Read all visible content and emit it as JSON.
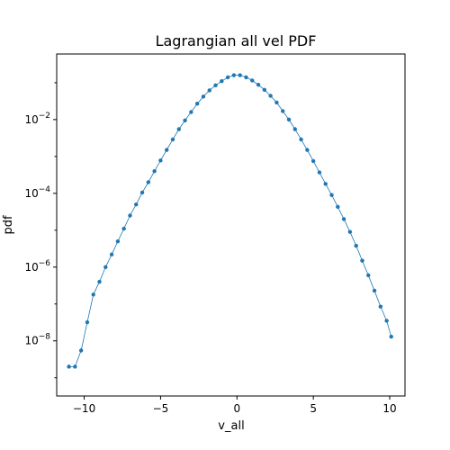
{
  "chart_data": {
    "type": "line",
    "title": "Lagrangian all vel PDF",
    "xlabel": "v_all",
    "ylabel": "pdf",
    "yscale": "log",
    "xlim": [
      -11.8,
      11.0
    ],
    "ylim": [
      3.2e-10,
      0.6
    ],
    "xticks": [
      -10,
      -5,
      0,
      5,
      10
    ],
    "yticks": [
      {
        "base": "10",
        "exp": "−2",
        "value": 0.01
      },
      {
        "base": "10",
        "exp": "−4",
        "value": 0.0001
      },
      {
        "base": "10",
        "exp": "−6",
        "value": 1e-06
      },
      {
        "base": "10",
        "exp": "−8",
        "value": 1e-08
      }
    ],
    "grid": false,
    "color": "#1f77b4",
    "marker": "circle",
    "series": [
      {
        "x": [
          -11.0,
          -10.6,
          -10.2,
          -9.8,
          -9.4,
          -9.0,
          -8.6,
          -8.2,
          -7.8,
          -7.4,
          -7.0,
          -6.6,
          -6.2,
          -5.8,
          -5.4,
          -5.0,
          -4.6,
          -4.2,
          -3.8,
          -3.4,
          -3.0,
          -2.6,
          -2.2,
          -1.8,
          -1.4,
          -1.0,
          -0.6,
          -0.2,
          0.2,
          0.6,
          1.0,
          1.4,
          1.8,
          2.2,
          2.6,
          3.0,
          3.4,
          3.8,
          4.2,
          4.6,
          5.0,
          5.4,
          5.8,
          6.2,
          6.6,
          7.0,
          7.4,
          7.8,
          8.2,
          8.6,
          9.0,
          9.4,
          9.8,
          10.1
        ],
        "y": [
          2e-09,
          2e-09,
          5.5e-09,
          3.2e-08,
          1.8e-07,
          4e-07,
          1e-06,
          2.2e-06,
          5e-06,
          1.1e-05,
          2.5e-05,
          5e-05,
          0.000105,
          0.0002,
          0.0004,
          0.00078,
          0.0015,
          0.0029,
          0.0055,
          0.0095,
          0.016,
          0.027,
          0.042,
          0.062,
          0.085,
          0.11,
          0.14,
          0.16,
          0.16,
          0.14,
          0.115,
          0.088,
          0.064,
          0.044,
          0.029,
          0.017,
          0.01,
          0.0055,
          0.0029,
          0.0015,
          0.00075,
          0.00037,
          0.00018,
          9e-05,
          4.3e-05,
          2e-05,
          9e-06,
          3.8e-06,
          1.5e-06,
          6e-07,
          2.3e-07,
          8.5e-08,
          3.5e-08,
          1.3e-08
        ]
      }
    ]
  }
}
